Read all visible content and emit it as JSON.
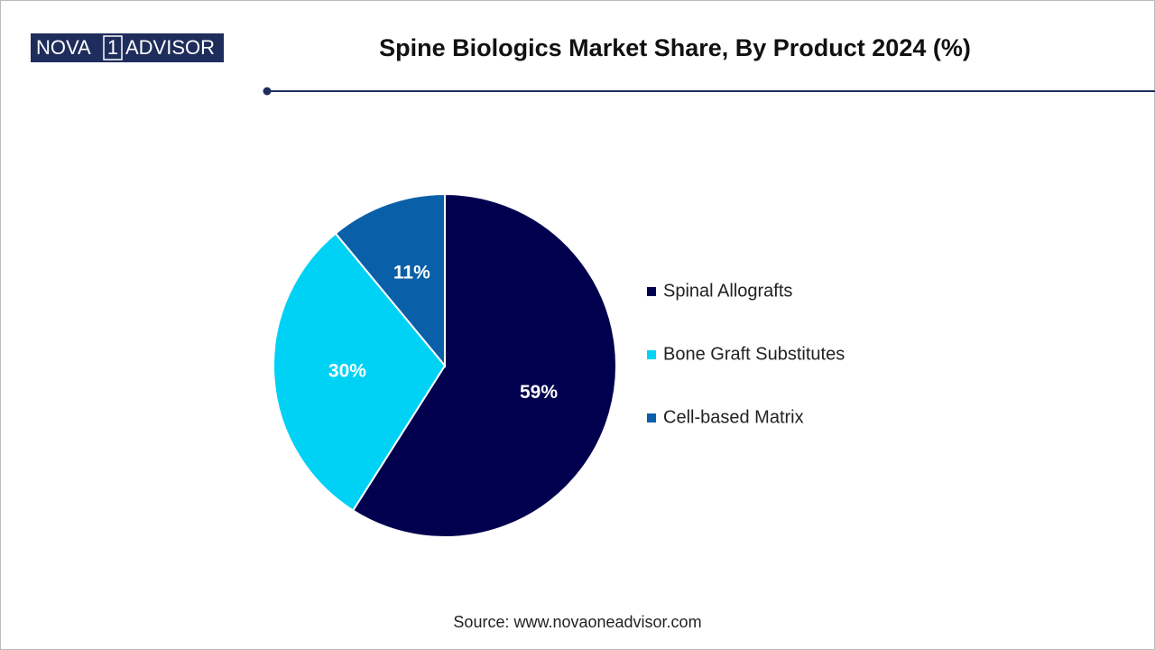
{
  "logo": {
    "left": "NOVA",
    "mark": "1",
    "right": "ADVISOR"
  },
  "source": "Source: www.novaoneadvisor.com",
  "chart_data": {
    "type": "pie",
    "title": "Spine Biologics Market Share, By Product 2024 (%)",
    "categories": [
      "Spinal Allografts",
      "Bone Graft Substitutes",
      "Cell-based Matrix"
    ],
    "values": [
      59,
      30,
      11
    ],
    "value_labels": [
      "59%",
      "30%",
      "11%"
    ],
    "colors": [
      "#00004f",
      "#00d2f5",
      "#0a60a8"
    ],
    "legend": "right"
  }
}
